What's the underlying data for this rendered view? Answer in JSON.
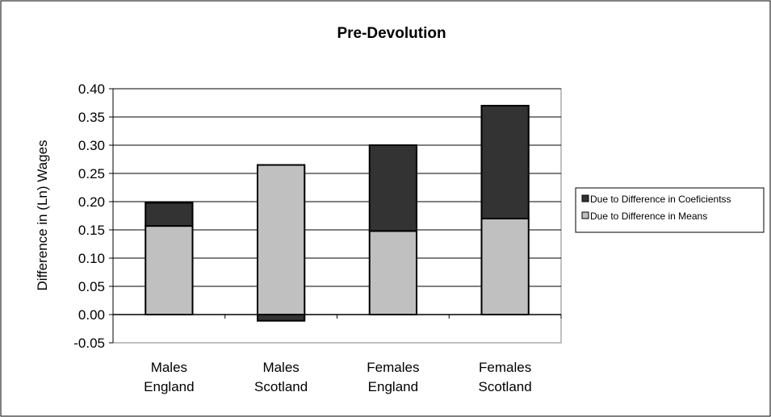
{
  "chart_data": {
    "type": "bar",
    "stacked": true,
    "title": "Pre-Devolution",
    "ylabel": "Difference in (Ln) Wages",
    "xlabel": "",
    "ylim": [
      -0.05,
      0.4
    ],
    "yticks": [
      -0.05,
      0.0,
      0.05,
      0.1,
      0.15,
      0.2,
      0.25,
      0.3,
      0.35,
      0.4
    ],
    "ytick_labels": [
      "-0.05",
      "0.00",
      "0.05",
      "0.10",
      "0.15",
      "0.20",
      "0.25",
      "0.30",
      "0.35",
      "0.40"
    ],
    "grid": true,
    "legend_position": "right",
    "categories": [
      [
        "Males",
        "England"
      ],
      [
        "Males",
        "Scotland"
      ],
      [
        "Females",
        "England"
      ],
      [
        "Females",
        "Scotland"
      ]
    ],
    "series": [
      {
        "name": "Due to Difference in Means",
        "color": "#c0c0c0",
        "values": [
          0.157,
          0.265,
          0.148,
          0.17
        ]
      },
      {
        "name": "Due to Difference in Coeficientss",
        "color": "#333333",
        "values": [
          0.041,
          -0.011,
          0.152,
          0.2
        ]
      }
    ],
    "legend_order": [
      1,
      0
    ]
  }
}
